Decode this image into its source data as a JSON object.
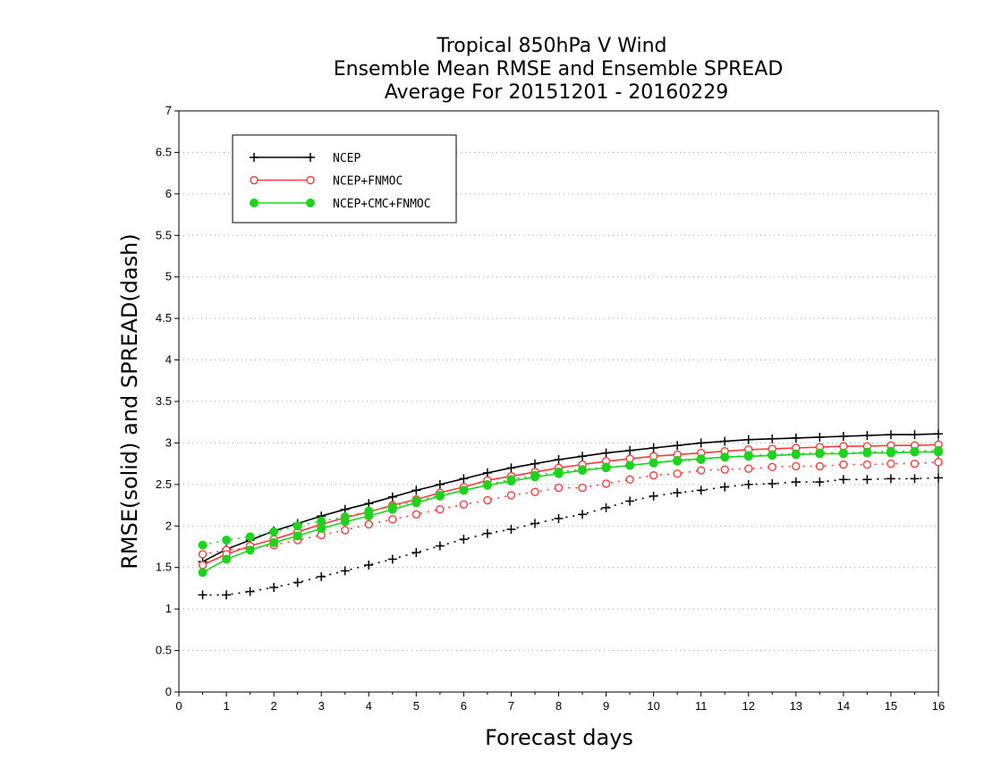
{
  "chart_data": {
    "type": "line",
    "title_lines": [
      "Tropical 850hPa V Wind",
      "Ensemble Mean RMSE and Ensemble SPREAD",
      "Average For 20151201 - 20160229"
    ],
    "xlabel": "Forecast days",
    "ylabel": "RMSE(solid) and SPREAD(dash)",
    "xlim": [
      0,
      16
    ],
    "ylim": [
      0,
      7
    ],
    "x_ticks": [
      "0",
      "1",
      "2",
      "3",
      "4",
      "5",
      "6",
      "7",
      "8",
      "9",
      "10",
      "11",
      "12",
      "13",
      "14",
      "15",
      "16"
    ],
    "y_ticks": [
      "0",
      "0.5",
      "1",
      "1.5",
      "2",
      "2.5",
      "3",
      "3.5",
      "4",
      "4.5",
      "5",
      "5.5",
      "6",
      "6.5",
      "7"
    ],
    "grid": "horizontal dotted",
    "legend_position": "top-left",
    "x": [
      0.5,
      1,
      1.5,
      2,
      2.5,
      3,
      3.5,
      4,
      4.5,
      5,
      5.5,
      6,
      6.5,
      7,
      7.5,
      8,
      8.5,
      9,
      9.5,
      10,
      10.5,
      11,
      11.5,
      12,
      12.5,
      13,
      13.5,
      14,
      14.5,
      15,
      15.5,
      16
    ],
    "series": [
      {
        "name": "NCEP",
        "color": "#000000",
        "marker": "plus",
        "rmse": [
          1.57,
          1.72,
          1.83,
          1.94,
          2.03,
          2.12,
          2.2,
          2.27,
          2.35,
          2.43,
          2.5,
          2.57,
          2.64,
          2.7,
          2.75,
          2.8,
          2.84,
          2.88,
          2.91,
          2.94,
          2.97,
          3.0,
          3.02,
          3.04,
          3.05,
          3.06,
          3.07,
          3.08,
          3.09,
          3.1,
          3.1,
          3.11
        ],
        "spread": [
          1.17,
          1.17,
          1.21,
          1.26,
          1.32,
          1.39,
          1.46,
          1.53,
          1.6,
          1.68,
          1.76,
          1.84,
          1.91,
          1.96,
          2.03,
          2.09,
          2.14,
          2.22,
          2.3,
          2.36,
          2.4,
          2.43,
          2.47,
          2.5,
          2.51,
          2.53,
          2.53,
          2.56,
          2.56,
          2.57,
          2.57,
          2.58
        ]
      },
      {
        "name": "NCEP+FNMOC",
        "color": "#ff3a3a",
        "marker": "open-circle",
        "rmse": [
          1.53,
          1.66,
          1.76,
          1.84,
          1.93,
          2.02,
          2.1,
          2.17,
          2.25,
          2.32,
          2.4,
          2.47,
          2.55,
          2.6,
          2.65,
          2.7,
          2.74,
          2.78,
          2.81,
          2.84,
          2.86,
          2.88,
          2.9,
          2.92,
          2.93,
          2.94,
          2.95,
          2.96,
          2.96,
          2.97,
          2.97,
          2.98
        ],
        "spread": [
          1.66,
          1.71,
          1.73,
          1.77,
          1.83,
          1.89,
          1.95,
          2.02,
          2.08,
          2.14,
          2.2,
          2.26,
          2.31,
          2.37,
          2.41,
          2.46,
          2.46,
          2.51,
          2.56,
          2.61,
          2.63,
          2.67,
          2.68,
          2.69,
          2.71,
          2.72,
          2.72,
          2.74,
          2.74,
          2.75,
          2.75,
          2.77
        ]
      },
      {
        "name": "NCEP+CMC+FNMOC",
        "color": "#1ed31e",
        "marker": "filled-circle",
        "rmse": [
          1.44,
          1.6,
          1.71,
          1.8,
          1.88,
          1.97,
          2.05,
          2.12,
          2.2,
          2.28,
          2.36,
          2.43,
          2.49,
          2.54,
          2.59,
          2.63,
          2.67,
          2.7,
          2.73,
          2.76,
          2.79,
          2.81,
          2.83,
          2.84,
          2.85,
          2.86,
          2.87,
          2.87,
          2.88,
          2.88,
          2.89,
          2.89
        ],
        "spread": [
          1.77,
          1.83,
          1.87,
          1.93,
          2.0,
          2.06,
          2.11,
          2.18,
          2.23,
          2.3,
          2.37,
          2.43,
          2.5,
          2.56,
          2.61,
          2.65,
          2.68,
          2.71,
          2.73,
          2.76,
          2.78,
          2.8,
          2.83,
          2.85,
          2.86,
          2.87,
          2.88,
          2.88,
          2.89,
          2.9,
          2.9,
          2.91
        ]
      }
    ]
  }
}
